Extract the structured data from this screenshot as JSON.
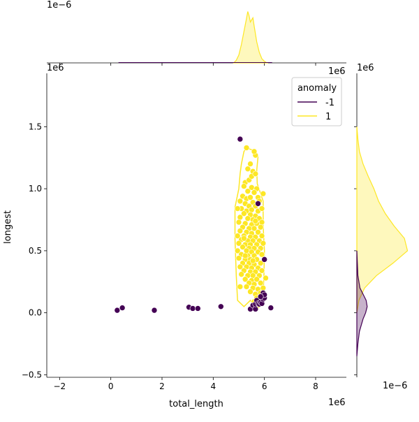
{
  "chart_data": {
    "type": "scatter",
    "subtype": "jointplot",
    "xlabel": "total_length",
    "ylabel": "longest",
    "x_offset_label": "1e6",
    "y_offset_label": "1e6",
    "top_marginal_offset_label": "1e−6",
    "right_marginal_offset_label": "1e−6",
    "right_marginal_top_label": "1e6",
    "top_marginal_right_label": "1e6",
    "xlim": [
      -2.5,
      9.2
    ],
    "ylim": [
      -0.52,
      1.93
    ],
    "xticks": [
      -2,
      0,
      2,
      4,
      6,
      8
    ],
    "yticks": [
      -0.5,
      0.0,
      0.5,
      1.0,
      1.5
    ],
    "xtick_labels": [
      "−2",
      "0",
      "2",
      "4",
      "6",
      "8"
    ],
    "ytick_labels": [
      "−0.5",
      "0.0",
      "0.5",
      "1.0",
      "1.5"
    ],
    "legend": {
      "title": "anomaly",
      "placement": "upper right",
      "entries": [
        {
          "label": "-1",
          "color": "#440154"
        },
        {
          "label": "1",
          "color": "#fde725"
        }
      ]
    },
    "series": [
      {
        "name": "-1",
        "color": "#440154",
        "points": [
          [
            0.25,
            0.02
          ],
          [
            0.45,
            0.04
          ],
          [
            1.7,
            0.02
          ],
          [
            3.05,
            0.045
          ],
          [
            3.2,
            0.035
          ],
          [
            3.4,
            0.035
          ],
          [
            4.3,
            0.05
          ],
          [
            5.05,
            1.4
          ],
          [
            5.45,
            0.03
          ],
          [
            5.55,
            0.06
          ],
          [
            5.65,
            0.03
          ],
          [
            5.65,
            0.07
          ],
          [
            5.7,
            0.1
          ],
          [
            5.75,
            0.075
          ],
          [
            5.8,
            0.07
          ],
          [
            5.85,
            0.085
          ],
          [
            5.9,
            0.075
          ],
          [
            5.95,
            0.11
          ],
          [
            5.95,
            0.16
          ],
          [
            6.0,
            0.12
          ],
          [
            6.0,
            0.145
          ],
          [
            5.85,
            0.13
          ],
          [
            5.75,
            0.88
          ],
          [
            6.0,
            0.43
          ],
          [
            6.25,
            0.04
          ]
        ]
      },
      {
        "name": "1",
        "color": "#fde725",
        "points": [
          [
            5.3,
            1.33
          ],
          [
            5.65,
            1.27
          ],
          [
            5.6,
            1.3
          ],
          [
            5.45,
            1.2
          ],
          [
            5.35,
            1.16
          ],
          [
            5.55,
            1.14
          ],
          [
            5.25,
            1.05
          ],
          [
            5.4,
            1.07
          ],
          [
            5.5,
            1.1
          ],
          [
            5.65,
            1.12
          ],
          [
            5.2,
            1.02
          ],
          [
            5.5,
            1.01
          ],
          [
            5.7,
            1.0
          ],
          [
            5.35,
            0.98
          ],
          [
            5.6,
            0.97
          ],
          [
            5.95,
            0.96
          ],
          [
            5.15,
            0.94
          ],
          [
            5.3,
            0.92
          ],
          [
            5.45,
            0.93
          ],
          [
            5.75,
            0.93
          ],
          [
            5.05,
            0.9
          ],
          [
            5.25,
            0.88
          ],
          [
            5.55,
            0.89
          ],
          [
            5.8,
            0.9
          ],
          [
            5.4,
            0.86
          ],
          [
            5.65,
            0.86
          ],
          [
            5.1,
            0.84
          ],
          [
            4.95,
            0.84
          ],
          [
            5.3,
            0.82
          ],
          [
            5.5,
            0.83
          ],
          [
            5.75,
            0.82
          ],
          [
            5.9,
            0.84
          ],
          [
            5.2,
            0.8
          ],
          [
            5.45,
            0.79
          ],
          [
            5.65,
            0.78
          ],
          [
            5.05,
            0.77
          ],
          [
            5.35,
            0.76
          ],
          [
            5.55,
            0.75
          ],
          [
            5.8,
            0.76
          ],
          [
            5.0,
            0.73
          ],
          [
            5.25,
            0.72
          ],
          [
            5.5,
            0.71
          ],
          [
            5.7,
            0.72
          ],
          [
            5.9,
            0.73
          ],
          [
            5.15,
            0.69
          ],
          [
            5.4,
            0.68
          ],
          [
            5.6,
            0.68
          ],
          [
            5.85,
            0.69
          ],
          [
            5.05,
            0.66
          ],
          [
            5.3,
            0.65
          ],
          [
            5.5,
            0.64
          ],
          [
            5.75,
            0.65
          ],
          [
            4.95,
            0.62
          ],
          [
            5.2,
            0.62
          ],
          [
            5.45,
            0.61
          ],
          [
            5.65,
            0.61
          ],
          [
            5.9,
            0.62
          ],
          [
            5.1,
            0.59
          ],
          [
            5.35,
            0.58
          ],
          [
            5.55,
            0.58
          ],
          [
            5.8,
            0.58
          ],
          [
            5.0,
            0.56
          ],
          [
            5.25,
            0.55
          ],
          [
            5.45,
            0.55
          ],
          [
            5.7,
            0.55
          ],
          [
            5.95,
            0.56
          ],
          [
            5.15,
            0.53
          ],
          [
            5.4,
            0.52
          ],
          [
            5.6,
            0.52
          ],
          [
            5.85,
            0.52
          ],
          [
            4.95,
            0.5
          ],
          [
            5.3,
            0.5
          ],
          [
            5.5,
            0.49
          ],
          [
            5.75,
            0.49
          ],
          [
            5.1,
            0.47
          ],
          [
            5.35,
            0.46
          ],
          [
            5.6,
            0.46
          ],
          [
            5.9,
            0.47
          ],
          [
            5.0,
            0.44
          ],
          [
            5.25,
            0.43
          ],
          [
            5.45,
            0.43
          ],
          [
            5.7,
            0.43
          ],
          [
            5.15,
            0.4
          ],
          [
            5.4,
            0.4
          ],
          [
            5.6,
            0.39
          ],
          [
            5.85,
            0.4
          ],
          [
            5.05,
            0.37
          ],
          [
            5.3,
            0.37
          ],
          [
            5.5,
            0.36
          ],
          [
            5.75,
            0.36
          ],
          [
            5.2,
            0.34
          ],
          [
            5.45,
            0.33
          ],
          [
            5.65,
            0.33
          ],
          [
            5.9,
            0.34
          ],
          [
            5.1,
            0.31
          ],
          [
            5.35,
            0.3
          ],
          [
            5.55,
            0.3
          ],
          [
            5.8,
            0.3
          ],
          [
            5.25,
            0.27
          ],
          [
            5.5,
            0.26
          ],
          [
            5.7,
            0.27
          ],
          [
            5.4,
            0.24
          ],
          [
            5.6,
            0.23
          ],
          [
            5.85,
            0.24
          ],
          [
            5.3,
            0.21
          ],
          [
            5.05,
            0.21
          ],
          [
            5.55,
            0.2
          ],
          [
            5.75,
            0.19
          ],
          [
            5.95,
            0.2
          ],
          [
            5.45,
            0.17
          ],
          [
            5.65,
            0.15
          ],
          [
            5.85,
            0.16
          ],
          [
            5.7,
            0.12
          ],
          [
            5.6,
            0.09
          ],
          [
            5.75,
            0.06
          ],
          [
            5.25,
            0.46
          ],
          [
            5.65,
            0.74
          ],
          [
            5.55,
            0.42
          ],
          [
            5.2,
            0.6
          ],
          [
            6.05,
            0.28
          ]
        ]
      }
    ],
    "marginal_x": {
      "series": "1",
      "x": [
        4.8,
        4.9,
        5.0,
        5.1,
        5.2,
        5.3,
        5.35,
        5.4,
        5.45,
        5.5,
        5.55,
        5.6,
        5.65,
        5.7,
        5.8,
        5.9,
        6.0,
        6.1
      ],
      "density": [
        0.0,
        0.05,
        0.15,
        0.35,
        0.6,
        0.85,
        0.98,
        0.9,
        0.78,
        0.82,
        0.86,
        0.7,
        0.55,
        0.4,
        0.2,
        0.08,
        0.03,
        0.0
      ]
    },
    "marginal_y_yellow": {
      "series": "1",
      "y": [
        0.0,
        0.1,
        0.2,
        0.3,
        0.4,
        0.5,
        0.6,
        0.7,
        0.8,
        0.9,
        1.0,
        1.1,
        1.2,
        1.3,
        1.4,
        1.5
      ],
      "density": [
        0.0,
        0.04,
        0.15,
        0.38,
        0.7,
        0.98,
        0.92,
        0.72,
        0.55,
        0.42,
        0.33,
        0.22,
        0.12,
        0.05,
        0.02,
        0.0
      ]
    },
    "marginal_y_purple": {
      "series": "-1",
      "y": [
        -0.35,
        -0.25,
        -0.15,
        -0.05,
        0.0,
        0.05,
        0.1,
        0.15,
        0.2,
        0.3,
        0.4,
        0.5
      ],
      "density": [
        0.0,
        0.02,
        0.05,
        0.12,
        0.17,
        0.2,
        0.18,
        0.12,
        0.06,
        0.02,
        0.01,
        0.0
      ]
    },
    "contour": {
      "series": "1",
      "outline": [
        [
          5.3,
          1.33
        ],
        [
          5.55,
          1.31
        ],
        [
          5.75,
          1.26
        ],
        [
          5.7,
          1.15
        ],
        [
          5.72,
          1.04
        ],
        [
          5.95,
          0.9
        ],
        [
          5.95,
          0.7
        ],
        [
          6.0,
          0.5
        ],
        [
          5.98,
          0.3
        ],
        [
          5.95,
          0.15
        ],
        [
          5.8,
          0.08
        ],
        [
          5.6,
          0.06
        ],
        [
          5.45,
          0.1
        ],
        [
          5.2,
          0.05
        ],
        [
          4.95,
          0.1
        ],
        [
          4.9,
          0.3
        ],
        [
          4.85,
          0.6
        ],
        [
          4.85,
          0.85
        ],
        [
          5.0,
          1.0
        ],
        [
          5.05,
          1.12
        ],
        [
          5.1,
          1.2
        ],
        [
          5.2,
          1.3
        ],
        [
          5.3,
          1.33
        ]
      ]
    }
  }
}
